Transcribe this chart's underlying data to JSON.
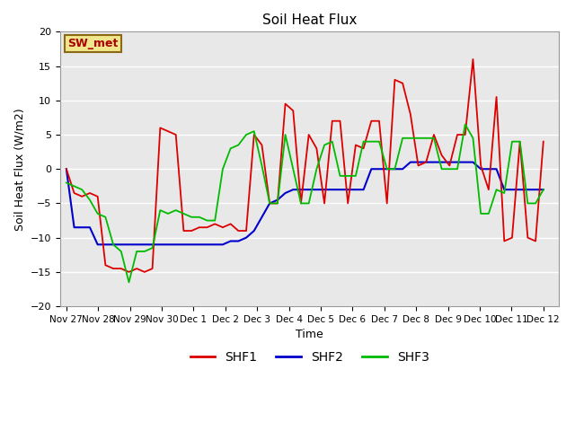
{
  "title": "Soil Heat Flux",
  "xlabel": "Time",
  "ylabel": "Soil Heat Flux (W/m2)",
  "ylim": [
    -20,
    20
  ],
  "yticks": [
    -20,
    -15,
    -10,
    -5,
    0,
    5,
    10,
    15,
    20
  ],
  "annotation": "SW_met",
  "bg_color": "#e8e8e8",
  "plot_bg": "#ebebeb",
  "line_colors": {
    "SHF1": "#dd0000",
    "SHF2": "#0000cc",
    "SHF3": "#00bb00"
  },
  "xtick_labels": [
    "Nov 27",
    "Nov 28",
    "Nov 29",
    "Nov 30",
    "Dec 1",
    "Dec 2",
    "Dec 3",
    "Dec 4",
    "Dec 5",
    "Dec 6",
    "Dec 7",
    "Dec 8",
    "Dec 9",
    "Dec 10",
    "Dec 11",
    "Dec 12"
  ],
  "SHF1": [
    0.0,
    -3.5,
    -4.0,
    -3.5,
    -4.0,
    -14.0,
    -14.5,
    -14.5,
    -15.0,
    -14.5,
    -15.0,
    -14.5,
    6.0,
    5.5,
    5.0,
    -9.0,
    -9.0,
    -8.5,
    -8.5,
    -8.0,
    -8.5,
    -8.0,
    -9.0,
    -9.0,
    5.0,
    3.5,
    -5.0,
    -5.0,
    9.5,
    8.5,
    -5.0,
    5.0,
    3.0,
    -5.0,
    7.0,
    7.0,
    -5.0,
    3.5,
    3.0,
    7.0,
    7.0,
    -5.0,
    13.0,
    12.5,
    8.0,
    0.5,
    1.0,
    5.0,
    2.0,
    0.5,
    5.0,
    5.0,
    16.0,
    0.5,
    -3.0,
    10.5,
    -10.5,
    -10.0,
    4.0,
    -10.0,
    -10.5,
    4.0
  ],
  "SHF2": [
    0.0,
    -8.5,
    -8.5,
    -8.5,
    -11.0,
    -11.0,
    -11.0,
    -11.0,
    -11.0,
    -11.0,
    -11.0,
    -11.0,
    -11.0,
    -11.0,
    -11.0,
    -11.0,
    -11.0,
    -11.0,
    -11.0,
    -11.0,
    -11.0,
    -10.5,
    -10.5,
    -10.0,
    -9.0,
    -7.0,
    -5.0,
    -4.5,
    -3.5,
    -3.0,
    -3.0,
    -3.0,
    -3.0,
    -3.0,
    -3.0,
    -3.0,
    -3.0,
    -3.0,
    -3.0,
    0.0,
    0.0,
    0.0,
    0.0,
    0.0,
    1.0,
    1.0,
    1.0,
    1.0,
    1.0,
    1.0,
    1.0,
    1.0,
    1.0,
    0.0,
    0.0,
    0.0,
    -3.0,
    -3.0,
    -3.0,
    -3.0,
    -3.0,
    -3.0
  ],
  "SHF3": [
    -2.0,
    -2.5,
    -3.0,
    -4.5,
    -6.5,
    -7.0,
    -11.0,
    -12.0,
    -16.5,
    -12.0,
    -12.0,
    -11.5,
    -6.0,
    -6.5,
    -6.0,
    -6.5,
    -7.0,
    -7.0,
    -7.5,
    -7.5,
    0.0,
    3.0,
    3.5,
    5.0,
    5.5,
    0.5,
    -5.0,
    -5.0,
    5.0,
    0.0,
    -5.0,
    -5.0,
    0.0,
    3.5,
    4.0,
    -1.0,
    -1.0,
    -1.0,
    4.0,
    4.0,
    4.0,
    0.0,
    0.0,
    4.5,
    4.5,
    4.5,
    4.5,
    4.5,
    0.0,
    0.0,
    0.0,
    6.5,
    4.5,
    -6.5,
    -6.5,
    -3.0,
    -3.5,
    4.0,
    4.0,
    -5.0,
    -5.0,
    -3.0
  ]
}
